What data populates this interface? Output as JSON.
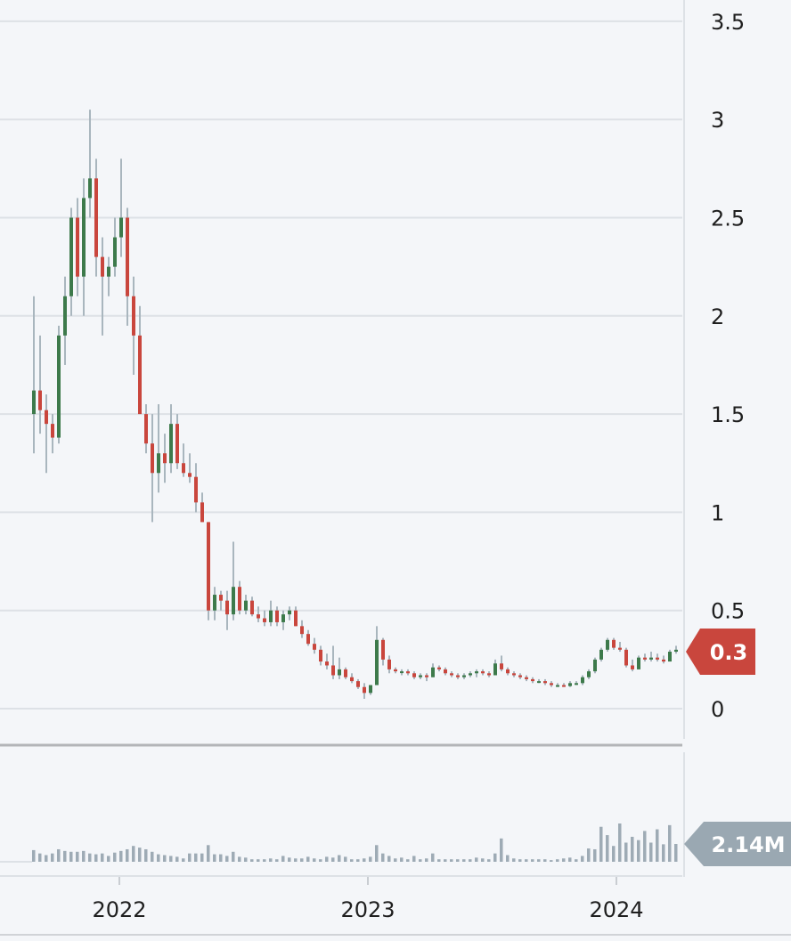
{
  "chart_data": {
    "type": "candlestick",
    "title": "",
    "xlabel": "",
    "ylabel": "",
    "price_axis": {
      "ticks": [
        "0",
        "0.5",
        "1",
        "1.5",
        "2",
        "2.5",
        "3",
        "3.5"
      ],
      "tick_values": [
        0,
        0.5,
        1,
        1.5,
        2,
        2.5,
        3,
        3.5
      ],
      "ylim": [
        0,
        3.5
      ],
      "position": "right"
    },
    "x_axis": {
      "ticks": [
        "2022",
        "2023",
        "2024"
      ]
    },
    "grid": true,
    "last_price_label": "0.3",
    "last_volume_label": "2.14M",
    "volume_unit": "M",
    "colors": {
      "up": "#3d7a4b",
      "down": "#c9463d",
      "wick": "#a9b6be",
      "volume": "#9eabb5",
      "price_tag": "#c9463d",
      "volume_tag": "#9aa8b2",
      "grid": "#dde1e6",
      "background": "#f4f6f9"
    },
    "candles_ohlcv": [
      [
        1.5,
        2.1,
        1.3,
        1.62,
        1.4
      ],
      [
        1.62,
        1.9,
        1.4,
        1.52,
        1.0
      ],
      [
        1.52,
        1.6,
        1.2,
        1.45,
        0.8
      ],
      [
        1.45,
        1.5,
        1.3,
        1.38,
        1.0
      ],
      [
        1.38,
        1.95,
        1.35,
        1.9,
        1.5
      ],
      [
        1.9,
        2.2,
        1.75,
        2.1,
        1.3
      ],
      [
        2.1,
        2.55,
        2.0,
        2.5,
        1.2
      ],
      [
        2.5,
        2.6,
        2.1,
        2.2,
        1.2
      ],
      [
        2.2,
        2.7,
        2.0,
        2.6,
        1.3
      ],
      [
        2.6,
        3.05,
        2.5,
        2.7,
        1.0
      ],
      [
        2.7,
        2.8,
        2.2,
        2.3,
        0.9
      ],
      [
        2.3,
        2.4,
        1.9,
        2.2,
        1.0
      ],
      [
        2.2,
        2.3,
        2.1,
        2.25,
        0.7
      ],
      [
        2.25,
        2.5,
        2.2,
        2.4,
        1.1
      ],
      [
        2.4,
        2.8,
        2.3,
        2.5,
        1.3
      ],
      [
        2.5,
        2.55,
        1.95,
        2.1,
        1.5
      ],
      [
        2.1,
        2.2,
        1.7,
        1.9,
        1.9
      ],
      [
        1.9,
        2.05,
        1.5,
        1.5,
        1.7
      ],
      [
        1.5,
        1.55,
        1.3,
        1.35,
        1.5
      ],
      [
        1.35,
        1.5,
        0.95,
        1.2,
        1.2
      ],
      [
        1.2,
        1.55,
        1.1,
        1.3,
        0.9
      ],
      [
        1.3,
        1.4,
        1.15,
        1.25,
        0.8
      ],
      [
        1.25,
        1.55,
        1.2,
        1.45,
        0.7
      ],
      [
        1.45,
        1.5,
        1.22,
        1.25,
        0.6
      ],
      [
        1.25,
        1.35,
        1.18,
        1.2,
        0.4
      ],
      [
        1.2,
        1.3,
        1.15,
        1.18,
        1.0
      ],
      [
        1.18,
        1.25,
        1.0,
        1.05,
        1.0
      ],
      [
        1.05,
        1.1,
        0.95,
        0.95,
        1.0
      ],
      [
        0.95,
        0.95,
        0.45,
        0.5,
        2.0
      ],
      [
        0.5,
        0.62,
        0.45,
        0.58,
        0.9
      ],
      [
        0.58,
        0.6,
        0.5,
        0.55,
        0.9
      ],
      [
        0.55,
        0.6,
        0.4,
        0.48,
        0.7
      ],
      [
        0.48,
        0.85,
        0.45,
        0.62,
        1.2
      ],
      [
        0.62,
        0.65,
        0.48,
        0.5,
        0.6
      ],
      [
        0.5,
        0.58,
        0.48,
        0.55,
        0.5
      ],
      [
        0.55,
        0.57,
        0.47,
        0.48,
        0.3
      ],
      [
        0.48,
        0.52,
        0.44,
        0.46,
        0.3
      ],
      [
        0.46,
        0.5,
        0.42,
        0.44,
        0.3
      ],
      [
        0.44,
        0.55,
        0.42,
        0.5,
        0.4
      ],
      [
        0.5,
        0.52,
        0.42,
        0.44,
        0.3
      ],
      [
        0.44,
        0.5,
        0.4,
        0.48,
        0.7
      ],
      [
        0.48,
        0.52,
        0.45,
        0.5,
        0.5
      ],
      [
        0.5,
        0.52,
        0.42,
        0.42,
        0.4
      ],
      [
        0.42,
        0.45,
        0.36,
        0.38,
        0.4
      ],
      [
        0.38,
        0.4,
        0.32,
        0.33,
        0.6
      ],
      [
        0.33,
        0.36,
        0.28,
        0.3,
        0.4
      ],
      [
        0.3,
        0.32,
        0.22,
        0.24,
        0.3
      ],
      [
        0.24,
        0.28,
        0.2,
        0.22,
        0.6
      ],
      [
        0.22,
        0.32,
        0.15,
        0.17,
        0.5
      ],
      [
        0.17,
        0.26,
        0.15,
        0.2,
        0.8
      ],
      [
        0.2,
        0.21,
        0.15,
        0.16,
        0.6
      ],
      [
        0.16,
        0.18,
        0.13,
        0.14,
        0.3
      ],
      [
        0.14,
        0.15,
        0.1,
        0.11,
        0.3
      ],
      [
        0.11,
        0.13,
        0.05,
        0.08,
        0.4
      ],
      [
        0.08,
        0.12,
        0.07,
        0.12,
        0.6
      ],
      [
        0.12,
        0.42,
        0.12,
        0.35,
        2.0
      ],
      [
        0.35,
        0.36,
        0.22,
        0.25,
        1.0
      ],
      [
        0.25,
        0.27,
        0.18,
        0.2,
        0.7
      ],
      [
        0.2,
        0.21,
        0.18,
        0.19,
        0.4
      ],
      [
        0.19,
        0.2,
        0.17,
        0.19,
        0.5
      ],
      [
        0.19,
        0.2,
        0.17,
        0.18,
        0.3
      ],
      [
        0.18,
        0.19,
        0.15,
        0.16,
        0.7
      ],
      [
        0.16,
        0.18,
        0.15,
        0.17,
        0.3
      ],
      [
        0.17,
        0.18,
        0.14,
        0.16,
        0.4
      ],
      [
        0.16,
        0.23,
        0.16,
        0.21,
        1.0
      ],
      [
        0.21,
        0.22,
        0.19,
        0.2,
        0.3
      ],
      [
        0.2,
        0.21,
        0.17,
        0.18,
        0.3
      ],
      [
        0.18,
        0.19,
        0.16,
        0.17,
        0.3
      ],
      [
        0.17,
        0.18,
        0.15,
        0.16,
        0.3
      ],
      [
        0.16,
        0.18,
        0.15,
        0.17,
        0.3
      ],
      [
        0.17,
        0.19,
        0.16,
        0.18,
        0.3
      ],
      [
        0.18,
        0.2,
        0.16,
        0.19,
        0.5
      ],
      [
        0.19,
        0.2,
        0.17,
        0.18,
        0.4
      ],
      [
        0.18,
        0.19,
        0.16,
        0.17,
        0.3
      ],
      [
        0.17,
        0.25,
        0.17,
        0.23,
        1.0
      ],
      [
        0.23,
        0.27,
        0.19,
        0.2,
        2.8
      ],
      [
        0.2,
        0.21,
        0.17,
        0.18,
        0.8
      ],
      [
        0.18,
        0.19,
        0.16,
        0.17,
        0.4
      ],
      [
        0.17,
        0.18,
        0.15,
        0.16,
        0.3
      ],
      [
        0.16,
        0.17,
        0.14,
        0.15,
        0.3
      ],
      [
        0.15,
        0.16,
        0.13,
        0.14,
        0.3
      ],
      [
        0.14,
        0.15,
        0.13,
        0.14,
        0.3
      ],
      [
        0.14,
        0.15,
        0.12,
        0.13,
        0.3
      ],
      [
        0.13,
        0.14,
        0.11,
        0.12,
        0.2
      ],
      [
        0.12,
        0.13,
        0.11,
        0.12,
        0.3
      ],
      [
        0.12,
        0.13,
        0.11,
        0.115,
        0.4
      ],
      [
        0.115,
        0.14,
        0.11,
        0.13,
        0.5
      ],
      [
        0.13,
        0.14,
        0.12,
        0.13,
        0.3
      ],
      [
        0.13,
        0.17,
        0.12,
        0.16,
        0.7
      ],
      [
        0.16,
        0.2,
        0.15,
        0.19,
        1.6
      ],
      [
        0.19,
        0.26,
        0.18,
        0.25,
        1.5
      ],
      [
        0.25,
        0.31,
        0.24,
        0.3,
        4.2
      ],
      [
        0.3,
        0.36,
        0.29,
        0.35,
        3.2
      ],
      [
        0.35,
        0.36,
        0.3,
        0.31,
        1.9
      ],
      [
        0.31,
        0.34,
        0.29,
        0.3,
        4.6
      ],
      [
        0.3,
        0.31,
        0.21,
        0.22,
        2.3
      ],
      [
        0.22,
        0.25,
        0.19,
        0.2,
        3.0
      ],
      [
        0.2,
        0.27,
        0.2,
        0.26,
        2.6
      ],
      [
        0.26,
        0.28,
        0.24,
        0.25,
        3.7
      ],
      [
        0.25,
        0.29,
        0.24,
        0.26,
        2.3
      ],
      [
        0.26,
        0.28,
        0.24,
        0.25,
        3.9
      ],
      [
        0.25,
        0.27,
        0.23,
        0.24,
        2.1
      ],
      [
        0.24,
        0.3,
        0.24,
        0.29,
        4.4
      ],
      [
        0.29,
        0.32,
        0.28,
        0.3,
        2.14
      ]
    ]
  }
}
